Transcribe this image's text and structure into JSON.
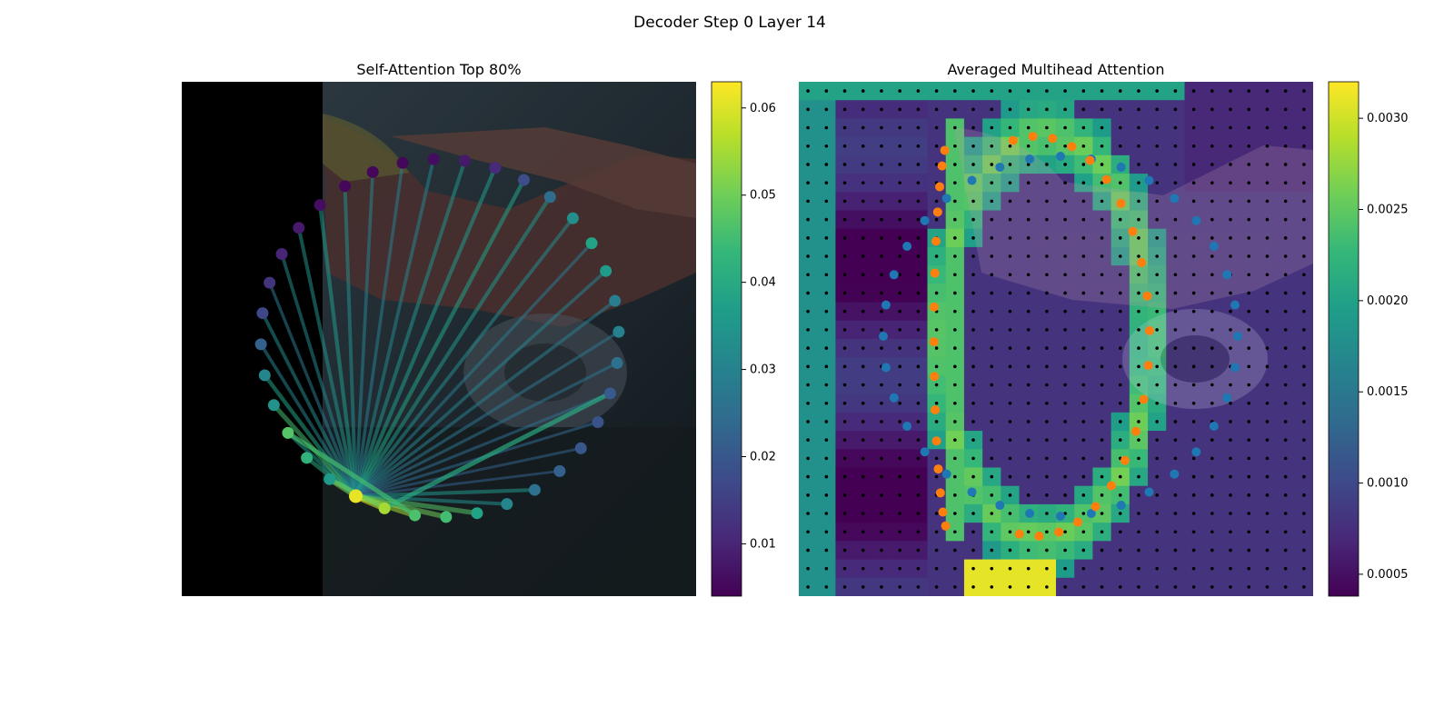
{
  "figure": {
    "suptitle": "Decoder Step 0 Layer 14"
  },
  "colors": {
    "viridis": [
      "#440154",
      "#482878",
      "#3e4989",
      "#31688e",
      "#26828e",
      "#1f9e89",
      "#35b779",
      "#6ece58",
      "#b5de2b",
      "#fde725"
    ],
    "blue_points": "#1f77b4",
    "orange_points": "#ff7f0e",
    "grid_dots": "#000000",
    "background_black": "#000000"
  },
  "chart_data": [
    {
      "type": "scatter",
      "title": "Self-Attention Top 80%",
      "description_kind": "attention graph over an image: 36 contour nodes on a circle, edges colored by attention weight",
      "colorbar": {
        "range": [
          0.004,
          0.063
        ],
        "ticks": [
          0.01,
          0.02,
          0.03,
          0.04,
          0.05,
          0.06
        ],
        "tick_labels": [
          "0.01",
          "0.02",
          "0.03",
          "0.04",
          "0.05",
          "0.06"
        ]
      },
      "node_count": 36,
      "node_values": [
        0.061,
        0.036,
        0.042,
        0.047,
        0.034,
        0.031,
        0.022,
        0.017,
        0.013,
        0.01,
        0.008,
        0.006,
        0.005,
        0.005,
        0.005,
        0.006,
        0.008,
        0.011,
        0.018,
        0.025,
        0.033,
        0.038,
        0.036,
        0.029,
        0.03,
        0.026,
        0.021,
        0.019,
        0.02,
        0.022,
        0.026,
        0.031,
        0.038,
        0.045,
        0.046,
        0.055
      ],
      "edges_from_node_0": [
        0.052,
        0.04,
        0.036,
        0.045,
        0.038,
        0.03,
        0.032,
        0.028,
        0.031,
        0.034,
        0.036,
        0.033,
        0.03,
        0.029,
        0.031,
        0.034,
        0.036,
        0.038,
        0.035,
        0.032,
        0.028,
        0.03,
        0.029,
        0.027,
        0.026,
        0.025,
        0.024,
        0.023,
        0.022,
        0.035,
        0.033,
        0.047,
        0.05,
        0.055,
        0.061
      ],
      "strong_edges": [
        {
          "from": 35,
          "to": 1,
          "value": 0.048
        },
        {
          "from": 35,
          "to": 26,
          "value": 0.04
        },
        {
          "from": 34,
          "to": 3,
          "value": 0.045
        }
      ]
    },
    {
      "type": "heatmap",
      "title": "Averaged Multihead Attention",
      "colorbar": {
        "range": [
          0.00038,
          0.0032
        ],
        "ticks": [
          0.0005,
          0.001,
          0.0015,
          0.002,
          0.0025,
          0.003
        ],
        "tick_labels": [
          "0.0005",
          "0.0010",
          "0.0015",
          "0.0020",
          "0.0025",
          "0.0030"
        ]
      },
      "grid_size": [
        28,
        28
      ],
      "high_attention_band": "follows the orange contour: high values (~0.0025-0.0032) along a crescent from the upper-left to the bottom, plus a hot patch at the bottom center",
      "blue_series": {
        "name": "",
        "point_count": 36
      },
      "orange_series": {
        "name": "",
        "point_count": 36
      }
    }
  ]
}
